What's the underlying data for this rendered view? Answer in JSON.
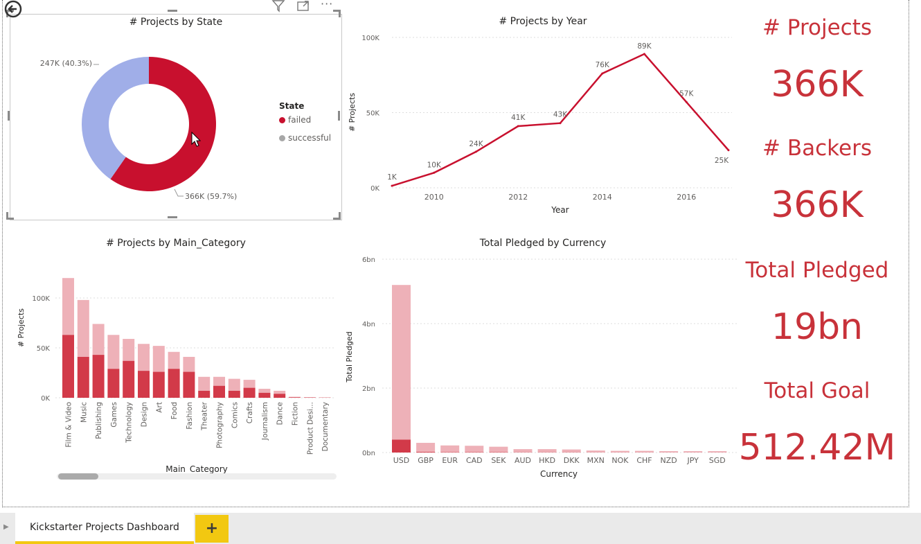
{
  "donut": {
    "title": "# Projects by State",
    "legend_title": "State",
    "label_failed": "366K (59.7%)",
    "label_successful": "247K (40.3%)"
  },
  "year_line": {
    "title": "# Projects by Year"
  },
  "category_bar": {
    "title": "# Projects by Main_Category"
  },
  "currency_bar": {
    "title": "Total Pledged by Currency"
  },
  "cards": {
    "projects_label": "# Projects",
    "projects_value": "366K",
    "backers_label": "# Backers",
    "backers_value": "366K",
    "pledged_label": "Total Pledged",
    "pledged_value": "19bn",
    "goal_label": "Total Goal",
    "goal_value": "512.42M"
  },
  "tabs": {
    "page_label": "Kickstarter Projects Dashboard",
    "add_label": "+"
  },
  "colors": {
    "failed": "#c8102e",
    "successful": "#a0aee8",
    "accent": "#c8323a",
    "light": "#eeb1b8",
    "dark": "#d23a49"
  },
  "icons": [
    "back-icon",
    "filter-icon",
    "focus-mode-icon",
    "more-options-icon"
  ],
  "chart_data": [
    {
      "type": "pie",
      "title": "# Projects by State",
      "legend_title": "State",
      "categories": [
        "failed",
        "successful"
      ],
      "values": [
        366000,
        247000
      ],
      "percent": [
        59.7,
        40.3
      ],
      "data_labels": [
        "366K (59.7%)",
        "247K (40.3%)"
      ],
      "legend_position": "right"
    },
    {
      "type": "line",
      "title": "# Projects by Year",
      "xlabel": "Year",
      "ylabel": "# Projects",
      "x": [
        2009,
        2010,
        2011,
        2012,
        2013,
        2014,
        2015,
        2016,
        2017
      ],
      "values": [
        1300,
        10000,
        24000,
        41000,
        43000,
        76000,
        89000,
        57000,
        25000
      ],
      "data_labels": [
        "1K",
        "10K",
        "24K",
        "41K",
        "43K",
        "76K",
        "89K",
        "57K",
        "25K"
      ],
      "x_ticks": [
        "2010",
        "2012",
        "2014",
        "2016"
      ],
      "y_ticks": [
        "0K",
        "50K",
        "100K"
      ],
      "ylim": [
        0,
        100000
      ]
    },
    {
      "type": "bar",
      "title": "# Projects by Main_Category",
      "xlabel": "Main_Category",
      "ylabel": "# Projects",
      "categories": [
        "Film & Video",
        "Music",
        "Publishing",
        "Games",
        "Technology",
        "Design",
        "Art",
        "Food",
        "Fashion",
        "Theater",
        "Photography",
        "Comics",
        "Crafts",
        "Journalism",
        "Dance",
        "Fiction",
        "Product Desi...",
        "Documentary"
      ],
      "series": [
        {
          "values": [
            63000,
            41000,
            43000,
            29000,
            37000,
            27000,
            26000,
            29000,
            26000,
            7000,
            12000,
            7000,
            10000,
            5000,
            4000,
            500,
            300,
            200
          ]
        },
        {
          "values": [
            57000,
            57000,
            31000,
            34000,
            22000,
            27000,
            26000,
            17000,
            15000,
            14000,
            9000,
            12000,
            8000,
            4000,
            3000,
            500,
            300,
            200
          ]
        }
      ],
      "totals": [
        120000,
        98000,
        74000,
        63000,
        59000,
        54000,
        52000,
        46000,
        41000,
        21000,
        21000,
        19000,
        18000,
        9000,
        7000,
        1000,
        600,
        400
      ],
      "y_ticks": [
        "0K",
        "50K",
        "100K"
      ],
      "ylim": [
        0,
        125000
      ]
    },
    {
      "type": "bar",
      "title": "Total Pledged by Currency",
      "xlabel": "Currency",
      "ylabel": "Total Pledged",
      "categories": [
        "USD",
        "GBP",
        "EUR",
        "CAD",
        "SEK",
        "AUD",
        "HKD",
        "DKK",
        "MXN",
        "NOK",
        "CHF",
        "NZD",
        "JPY",
        "SGD"
      ],
      "series": [
        {
          "values": [
            0.4,
            0.02,
            0.01,
            0.01,
            0.01,
            0.005,
            0.005,
            0.005,
            0.002,
            0.002,
            0.002,
            0.002,
            0.002,
            0.002
          ]
        },
        {
          "values": [
            4.8,
            0.28,
            0.21,
            0.2,
            0.17,
            0.1,
            0.1,
            0.09,
            0.06,
            0.05,
            0.05,
            0.04,
            0.04,
            0.04
          ]
        }
      ],
      "totals": [
        5.2,
        0.3,
        0.22,
        0.21,
        0.18,
        0.105,
        0.105,
        0.095,
        0.062,
        0.052,
        0.052,
        0.042,
        0.042,
        0.042
      ],
      "y_ticks": [
        "0bn",
        "2bn",
        "4bn",
        "6bn"
      ],
      "ylim": [
        0,
        6
      ]
    }
  ]
}
